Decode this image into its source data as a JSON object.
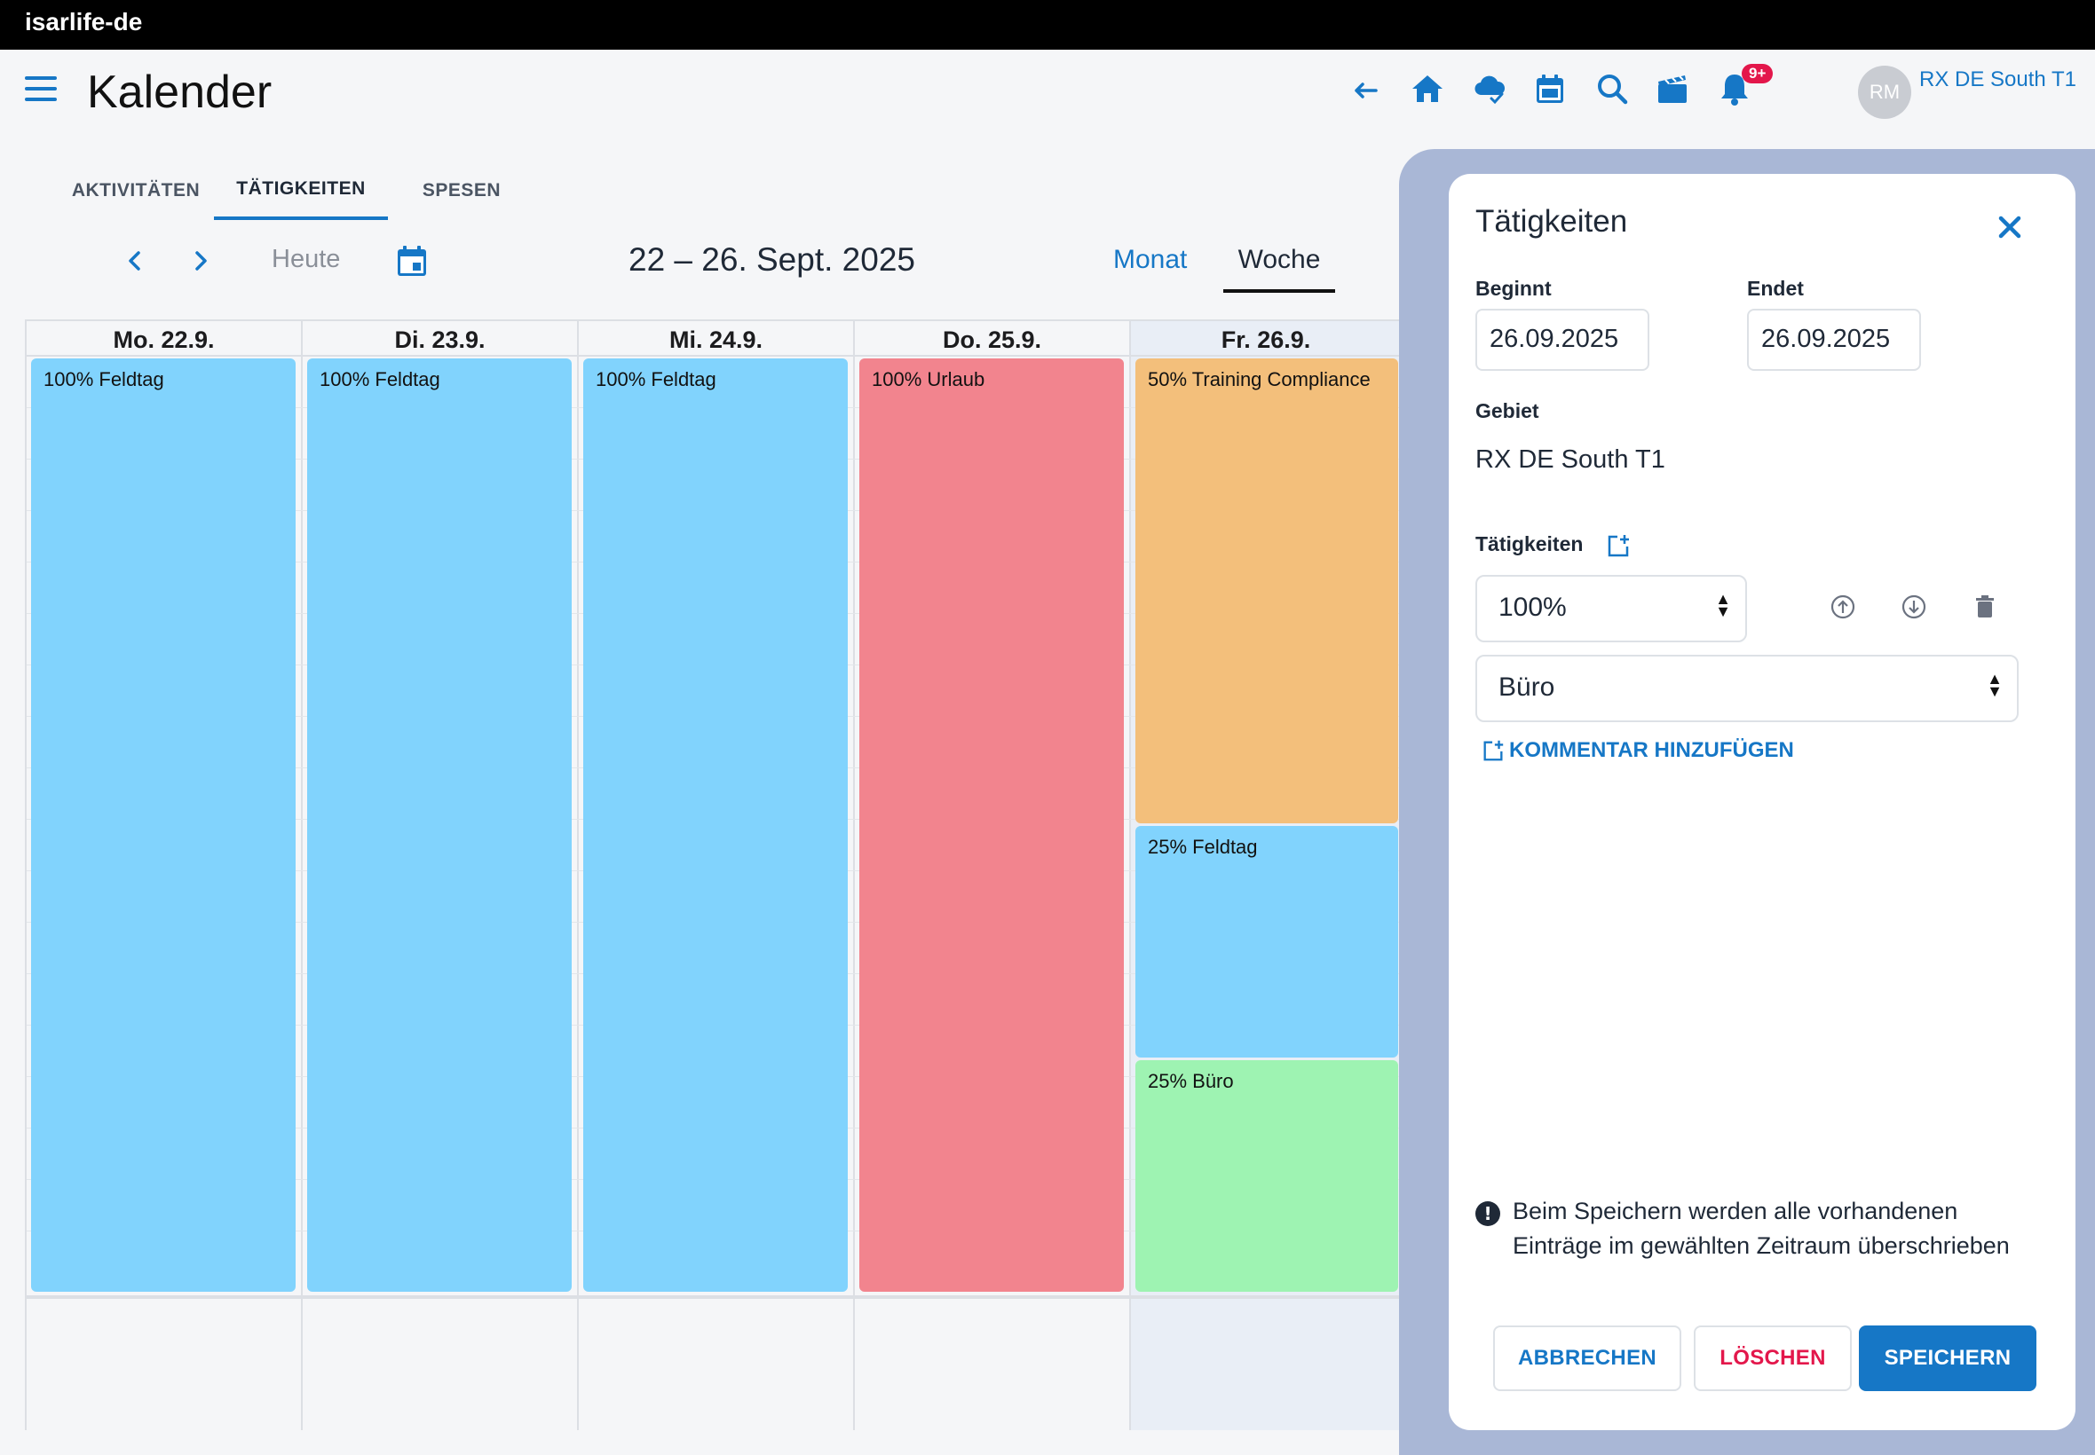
{
  "app": {
    "brand": "isarlife-de"
  },
  "header": {
    "title": "Kalender",
    "notifications_badge": "9+",
    "avatar_initials": "RM",
    "user_name": "RX DE South T1",
    "icons": [
      "back-arrow-icon",
      "home-icon",
      "cloud-check-icon",
      "calendar-icon",
      "search-icon",
      "clapperboard-icon",
      "bell-icon"
    ]
  },
  "tabs": [
    {
      "label": "AKTIVITÄTEN"
    },
    {
      "label": "TÄTIGKEITEN"
    },
    {
      "label": "SPESEN"
    }
  ],
  "toolbar": {
    "today_label": "Heute",
    "range_label": "22 – 26. Sept. 2025",
    "view_month": "Monat",
    "view_week": "Woche"
  },
  "calendar": {
    "days": [
      {
        "label": "Mo. 22.9."
      },
      {
        "label": "Di. 23.9."
      },
      {
        "label": "Mi. 24.9."
      },
      {
        "label": "Do. 25.9."
      },
      {
        "label": "Fr. 26.9."
      }
    ],
    "events": {
      "mon": "100% Feldtag",
      "tue": "100% Feldtag",
      "wed": "100% Feldtag",
      "thu": "100% Urlaub",
      "fri1": "50% Training Compliance",
      "fri2": "25% Feldtag",
      "fri3": "25% Büro"
    },
    "colors": {
      "feldtag": "#81d3fd",
      "urlaub": "#f2848e",
      "training": "#f3bf7b",
      "buero": "#9ef3b2"
    }
  },
  "panel": {
    "title": "Tätigkeiten",
    "begins_label": "Beginnt",
    "begins_value": "26.09.2025",
    "ends_label": "Endet",
    "ends_value": "26.09.2025",
    "area_label": "Gebiet",
    "area_value": "RX DE South T1",
    "activities_label": "Tätigkeiten",
    "percent_select": "100%",
    "type_select": "Büro",
    "comment_link": "KOMMENTAR HINZUFÜGEN",
    "warning_text": "Beim Speichern werden alle vorhandenen Einträge im gewählten Zeitraum überschrieben",
    "cancel_button": "ABBRECHEN",
    "delete_button": "LÖSCHEN",
    "save_button": "SPEICHERN"
  },
  "accent_color": "#1677c6"
}
